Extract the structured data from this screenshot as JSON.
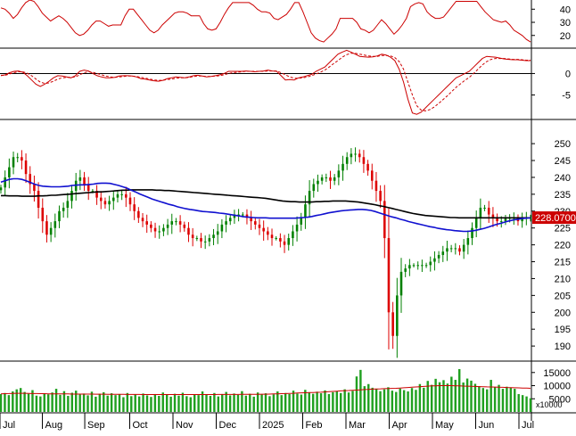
{
  "colors": {
    "background": "#ffffff",
    "axis": "#000000",
    "rsi_line": "#cc0000",
    "macd_line": "#cc0000",
    "macd_signal": "#cc0000",
    "candle_up": "#008000",
    "candle_down": "#dd0000",
    "ma_short": "#1010d0",
    "ma_long": "#000000",
    "volume_bar": "#20a020",
    "volume_ma": "#cc0000",
    "price_tag_bg": "#cc0000",
    "price_tag_text": "#ffffff"
  },
  "chart_data": [
    {
      "type": "line",
      "panel": "rsi",
      "ticks": [
        "40",
        "30",
        "20"
      ],
      "tick_values": [
        40,
        30,
        20
      ],
      "ylim": [
        11,
        47
      ],
      "series": [
        {
          "values": [
            41,
            40,
            37,
            33,
            36,
            41,
            45,
            47,
            46,
            42,
            37,
            34,
            31,
            33,
            35,
            33,
            30,
            26,
            22,
            20,
            21,
            24,
            28,
            31,
            31,
            29,
            27,
            28,
            28,
            28,
            35,
            40,
            40,
            36,
            32,
            28,
            24,
            22,
            24,
            28,
            31,
            34,
            37,
            38,
            38,
            37,
            35,
            35,
            35,
            29,
            25,
            24,
            25,
            30,
            36,
            41,
            45,
            45,
            45,
            45,
            45,
            43,
            40,
            38,
            38,
            37,
            33,
            32,
            34,
            36,
            40,
            45,
            45,
            38,
            30,
            22,
            18,
            16,
            15,
            18,
            21,
            25,
            33,
            33,
            33,
            33,
            30,
            25,
            24,
            22,
            24,
            28,
            32,
            29,
            25,
            21,
            24,
            28,
            33,
            42,
            44,
            45,
            44,
            38,
            35,
            33,
            33,
            34,
            38,
            42,
            46,
            46,
            46,
            46,
            46,
            46,
            42,
            38,
            35,
            32,
            31,
            30,
            31,
            28,
            24,
            22,
            20,
            17,
            15
          ]
        }
      ]
    },
    {
      "type": "line",
      "panel": "macd",
      "ticks": [
        "0",
        "-5"
      ],
      "tick_values": [
        0,
        -5
      ],
      "ylim": [
        -10.5,
        5.7
      ],
      "series": [
        {
          "style": "solid",
          "values": [
            -0.5,
            -0.3,
            0.2,
            0.5,
            0.6,
            0.3,
            -0.5,
            -1.5,
            -2.5,
            -3.0,
            -2.5,
            -1.8,
            -1.0,
            -0.5,
            -0.6,
            -0.8,
            -1.0,
            -0.5,
            0.5,
            0.8,
            0.6,
            0.0,
            -0.5,
            -0.8,
            -1.0,
            -1.0,
            -0.9,
            -0.6,
            -0.5,
            -0.5,
            -0.6,
            -0.8,
            -1.2,
            -1.3,
            -1.5,
            -1.7,
            -1.8,
            -1.6,
            -1.2,
            -1.0,
            -0.8,
            -0.9,
            -1.0,
            -0.8,
            -0.5,
            -0.4,
            -0.6,
            -0.8,
            -0.7,
            -0.5,
            -0.3,
            0.0,
            0.5,
            0.5,
            0.5,
            0.5,
            0.6,
            0.5,
            0.4,
            0.5,
            0.6,
            0.8,
            0.6,
            0.5,
            -0.5,
            -1.5,
            -1.4,
            -1.5,
            -1.0,
            -0.8,
            -0.5,
            -0.2,
            0.5,
            1.0,
            1.5,
            2.5,
            3.5,
            4.5,
            5.0,
            5.4,
            5.0,
            4.5,
            4.0,
            3.9,
            3.8,
            3.9,
            4.1,
            4.5,
            4.3,
            3.8,
            3.0,
            1.0,
            -2.0,
            -6.0,
            -9.2,
            -9.5,
            -9.0,
            -8.0,
            -7.0,
            -6.0,
            -5.0,
            -4.0,
            -3.0,
            -2.0,
            -1.0,
            -0.5,
            0.0,
            0.5,
            1.5,
            2.5,
            3.5,
            4.0,
            3.9,
            3.8,
            3.6,
            3.4,
            3.3,
            3.2,
            3.2,
            3.1,
            3.0,
            3.0
          ]
        },
        {
          "style": "dashed",
          "values": [
            -0.4,
            -0.4,
            -0.1,
            0.2,
            0.4,
            0.4,
            0.1,
            -0.5,
            -1.3,
            -2.0,
            -2.3,
            -2.2,
            -1.8,
            -1.3,
            -1.0,
            -0.9,
            -0.9,
            -0.8,
            -0.3,
            0.2,
            0.4,
            0.3,
            0.0,
            -0.3,
            -0.6,
            -0.8,
            -0.9,
            -0.8,
            -0.7,
            -0.6,
            -0.6,
            -0.7,
            -0.9,
            -1.1,
            -1.3,
            -1.5,
            -1.6,
            -1.6,
            -1.4,
            -1.3,
            -1.1,
            -1.0,
            -1.0,
            -0.9,
            -0.7,
            -0.6,
            -0.6,
            -0.7,
            -0.7,
            -0.6,
            -0.5,
            -0.3,
            0.0,
            0.2,
            0.3,
            0.4,
            0.5,
            0.5,
            0.5,
            0.5,
            0.5,
            0.6,
            0.6,
            0.6,
            0.2,
            -0.3,
            -0.8,
            -1.1,
            -1.1,
            -1.0,
            -0.8,
            -0.5,
            -0.1,
            0.3,
            0.8,
            1.5,
            2.3,
            3.0,
            3.8,
            4.4,
            4.7,
            4.7,
            4.5,
            4.3,
            4.1,
            4.0,
            4.0,
            4.2,
            4.2,
            4.1,
            3.7,
            2.8,
            1.0,
            -2.0,
            -5.0,
            -7.5,
            -8.5,
            -8.7,
            -8.4,
            -7.8,
            -7.0,
            -6.1,
            -5.2,
            -4.2,
            -3.2,
            -2.4,
            -1.6,
            -0.9,
            0.0,
            1.0,
            2.0,
            2.8,
            3.3,
            3.5,
            3.5,
            3.5,
            3.4,
            3.3,
            3.3,
            3.2,
            3.1,
            3.1
          ]
        }
      ]
    },
    {
      "type": "candlestick",
      "panel": "price",
      "ticks": [
        "250",
        "245",
        "240",
        "235",
        "230",
        "225",
        "220",
        "215",
        "210",
        "205",
        "200",
        "195",
        "190"
      ],
      "tick_values": [
        250,
        245,
        240,
        235,
        230,
        225,
        220,
        215,
        210,
        205,
        200,
        195,
        190
      ],
      "ylim": [
        185.8,
        256.9
      ],
      "x_labels": [
        "Jul",
        "Aug",
        "Sep",
        "Oct",
        "Nov",
        "Dec",
        "2025",
        "Feb",
        "Mar",
        "Apr",
        "May",
        "Jun",
        "Jul"
      ],
      "last_price": "228.0700",
      "close": [
        237,
        240,
        243,
        246,
        246,
        245,
        241,
        238,
        236,
        231,
        227,
        223,
        225,
        227,
        230,
        231,
        233,
        236,
        239,
        240,
        238,
        236,
        236,
        234,
        233,
        232,
        233,
        234,
        235,
        235,
        234,
        232,
        230,
        228,
        227,
        226,
        225,
        224,
        224,
        225,
        226,
        227,
        227,
        226,
        225,
        223,
        222,
        222,
        221,
        221,
        222,
        223,
        224,
        226,
        227,
        228,
        229,
        229,
        229,
        228,
        227,
        226,
        225,
        224,
        223,
        222,
        222,
        221,
        220,
        222,
        224,
        226,
        228,
        232,
        236,
        238,
        239,
        240,
        240,
        239,
        240,
        242,
        244,
        246,
        247,
        247,
        246,
        244,
        242,
        239,
        236,
        233,
        222,
        200,
        193,
        205,
        212,
        213,
        214,
        214,
        214,
        214,
        214,
        215,
        216,
        217,
        218,
        219,
        219,
        219,
        218,
        220,
        222,
        225,
        228,
        231,
        231,
        229,
        228,
        227,
        227,
        228,
        228,
        228,
        227,
        228,
        228,
        228.07
      ],
      "ma_short": [
        238.6,
        239.0,
        239.4,
        239.6,
        239.6,
        239.4,
        239.0,
        238.5,
        238.0,
        237.6,
        237.4,
        237.3,
        237.2,
        237.2,
        237.2,
        237.3,
        237.4,
        237.6,
        237.7,
        237.8,
        237.8,
        237.9,
        238.0,
        238.2,
        238.3,
        238.3,
        238.2,
        237.9,
        237.6,
        237.2,
        236.8,
        236.2,
        235.7,
        235.1,
        234.6,
        234.1,
        233.6,
        233.2,
        232.8,
        232.4,
        232.0,
        231.7,
        231.3,
        231.0,
        230.7,
        230.5,
        230.3,
        230.1,
        229.9,
        229.8,
        229.7,
        229.6,
        229.4,
        229.3,
        229.1,
        228.9,
        228.7,
        228.5,
        228.3,
        228.2,
        228.1,
        228.0,
        228.0,
        228.0,
        227.9,
        227.9,
        227.9,
        227.9,
        227.9,
        227.9,
        227.9,
        228.0,
        228.1,
        228.2,
        228.4,
        228.7,
        228.9,
        229.2,
        229.5,
        229.7,
        229.9,
        230.1,
        230.2,
        230.3,
        230.4,
        230.5,
        230.5,
        230.4,
        230.2,
        229.9,
        229.5,
        229.1,
        228.7,
        228.3,
        228.0,
        227.6,
        227.3,
        226.9,
        226.6,
        226.3,
        226.0,
        225.7,
        225.4,
        225.2,
        224.9,
        224.7,
        224.5,
        224.4,
        224.2,
        224.1,
        224.0,
        224.0,
        224.1,
        224.3,
        224.6,
        224.9,
        225.3,
        225.7,
        226.1,
        226.4,
        226.8,
        227.1,
        227.4,
        227.6,
        227.8,
        227.9,
        228.0
      ],
      "ma_long": [
        234.6,
        234.6,
        234.5,
        234.5,
        234.5,
        234.4,
        234.4,
        234.4,
        234.4,
        234.5,
        234.5,
        234.6,
        234.7,
        234.7,
        234.8,
        234.9,
        235.0,
        235.1,
        235.2,
        235.3,
        235.4,
        235.5,
        235.6,
        235.7,
        235.7,
        235.8,
        235.9,
        236.0,
        236.1,
        236.2,
        236.2,
        236.3,
        236.3,
        236.3,
        236.3,
        236.3,
        236.3,
        236.2,
        236.2,
        236.1,
        236.1,
        236.0,
        235.9,
        235.8,
        235.7,
        235.6,
        235.5,
        235.4,
        235.3,
        235.2,
        235.1,
        235.0,
        234.9,
        234.8,
        234.7,
        234.6,
        234.5,
        234.4,
        234.3,
        234.2,
        234.1,
        234.0,
        233.9,
        233.8,
        233.6,
        233.4,
        233.2,
        233.0,
        232.9,
        232.8,
        232.8,
        232.7,
        232.7,
        232.7,
        232.7,
        232.8,
        232.8,
        232.9,
        232.9,
        233.0,
        233.0,
        233.0,
        233.0,
        232.9,
        232.8,
        232.7,
        232.5,
        232.3,
        232.1,
        231.9,
        231.6,
        231.4,
        231.1,
        230.8,
        230.5,
        230.2,
        229.9,
        229.6,
        229.3,
        229.1,
        228.9,
        228.7,
        228.6,
        228.5,
        228.4,
        228.3,
        228.2,
        228.1,
        228.1,
        228.0,
        228.0,
        228.0,
        228.0,
        228.0,
        228.0,
        228.0,
        228.0,
        228.0,
        228.0,
        228.0,
        228.0,
        228.0,
        228.0,
        228.0,
        228.0,
        228.0,
        228.0
      ]
    },
    {
      "type": "bar",
      "panel": "volume",
      "ticks": [
        "15000",
        "10000",
        "5000"
      ],
      "tick_values": [
        15000,
        10000,
        5000
      ],
      "unit_label": "x10000",
      "ylim": [
        0,
        19000
      ],
      "values": [
        6800,
        7200,
        6400,
        7800,
        8600,
        9100,
        7600,
        6900,
        8300,
        6200,
        5900,
        7100,
        6700,
        7400,
        8800,
        6500,
        7900,
        6100,
        7300,
        8100,
        6600,
        7000,
        6300,
        7700,
        5800,
        6900,
        7500,
        6200,
        7100,
        6400,
        6800,
        5600,
        7200,
        6000,
        6600,
        5900,
        7000,
        6300,
        5700,
        6800,
        6100,
        7400,
        6500,
        5800,
        6900,
        6200,
        7300,
        6000,
        5600,
        6700,
        6400,
        7800,
        6600,
        6100,
        7200,
        5900,
        6800,
        7600,
        6300,
        7000,
        6500,
        7900,
        6200,
        6900,
        5800,
        7400,
        6600,
        7100,
        6000,
        6700,
        7800,
        6400,
        7200,
        6800,
        8100,
        7000,
        6600,
        8400,
        7300,
        6900,
        7700,
        7100,
        8200,
        6800,
        7500,
        7900,
        7200,
        8600,
        7400,
        8000,
        13500,
        16000,
        9800,
        10600,
        9200,
        8800,
        7900,
        8600,
        9400,
        8100,
        7600,
        8900,
        8300,
        7800,
        9100,
        8400,
        10600,
        9200,
        11800,
        10300,
        12600,
        11300,
        12100,
        10800,
        13400,
        12200,
        16300,
        11200,
        12700,
        11900,
        10700,
        9800,
        9100,
        8600,
        12200,
        9400,
        10300,
        8800,
        9600,
        9200,
        8800,
        6800,
        6400,
        5900,
        5200
      ],
      "ma_values": [
        6900,
        6950,
        7000,
        7050,
        7100,
        7100,
        7100,
        7050,
        7000,
        7000,
        6950,
        6950,
        6900,
        6900,
        6900,
        6850,
        6850,
        6850,
        6800,
        6800,
        6800,
        6800,
        6800,
        6800,
        6750,
        6750,
        6750,
        6700,
        6700,
        6700,
        6700,
        6700,
        6650,
        6650,
        6650,
        6650,
        6600,
        6600,
        6600,
        6600,
        6600,
        6600,
        6600,
        6600,
        6600,
        6600,
        6600,
        6600,
        6600,
        6600,
        6600,
        6600,
        6600,
        6600,
        6600,
        6650,
        6650,
        6650,
        6650,
        6650,
        6650,
        6700,
        6700,
        6700,
        6700,
        6700,
        6750,
        6750,
        6800,
        6850,
        6900,
        6950,
        7000,
        7050,
        7100,
        7200,
        7250,
        7300,
        7350,
        7400,
        7450,
        7500,
        7600,
        7700,
        7800,
        7900,
        8000,
        8100,
        8150,
        8200,
        8300,
        8400,
        8500,
        8600,
        8700,
        8750,
        8800,
        8850,
        8900,
        8950,
        9000,
        9100,
        9200,
        9300,
        9400,
        9500,
        9600,
        9700,
        9800,
        9900,
        9950,
        10000,
        10000,
        10000,
        10000,
        9950,
        9900,
        9850,
        9800,
        9750,
        9700,
        9650,
        9600,
        9550,
        9500,
        9450,
        9400,
        9350,
        9300,
        9250,
        9200,
        9150,
        9100,
        9050,
        9000
      ]
    }
  ]
}
